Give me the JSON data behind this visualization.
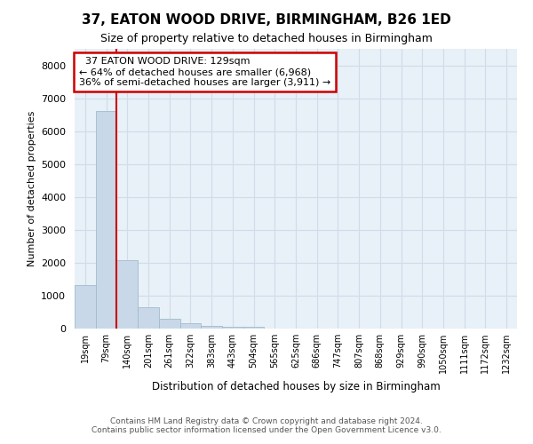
{
  "title": "37, EATON WOOD DRIVE, BIRMINGHAM, B26 1ED",
  "subtitle": "Size of property relative to detached houses in Birmingham",
  "xlabel": "Distribution of detached houses by size in Birmingham",
  "ylabel": "Number of detached properties",
  "bar_labels": [
    "19sqm",
    "79sqm",
    "140sqm",
    "201sqm",
    "261sqm",
    "322sqm",
    "383sqm",
    "443sqm",
    "504sqm",
    "565sqm",
    "625sqm",
    "686sqm",
    "747sqm",
    "807sqm",
    "868sqm",
    "929sqm",
    "990sqm",
    "1050sqm",
    "1111sqm",
    "1172sqm",
    "1232sqm"
  ],
  "bar_values": [
    1320,
    6600,
    2080,
    650,
    295,
    155,
    90,
    55,
    55,
    0,
    0,
    0,
    0,
    0,
    0,
    0,
    0,
    0,
    0,
    0,
    0
  ],
  "bar_color": "#c8d8e8",
  "bar_edge_color": "#a0bccc",
  "property_label": "37 EATON WOOD DRIVE: 129sqm",
  "smaller_pct": 64,
  "smaller_count": 6968,
  "larger_pct": 36,
  "larger_count": 3911,
  "ylim": [
    0,
    8500
  ],
  "yticks": [
    0,
    1000,
    2000,
    3000,
    4000,
    5000,
    6000,
    7000,
    8000
  ],
  "vline_color": "#cc0000",
  "annotation_box_edge_color": "#cc0000",
  "grid_color": "#d0dce8",
  "bg_color": "#e8f0f8",
  "footer_line1": "Contains HM Land Registry data © Crown copyright and database right 2024.",
  "footer_line2": "Contains public sector information licensed under the Open Government Licence v3.0."
}
